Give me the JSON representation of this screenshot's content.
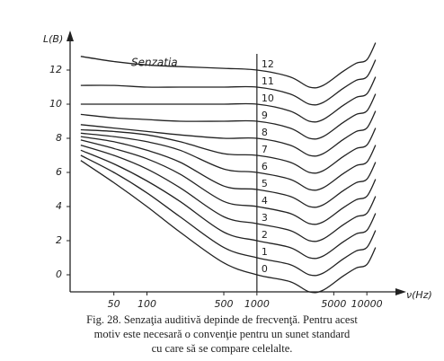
{
  "chart_data": {
    "type": "line",
    "y_label": "L(B)",
    "x_label": "ν(Hz)",
    "annotation": "Senzatia",
    "caption": [
      "Fig. 28. Senzaţia auditivă depinde de frecvenţă. Pentru acest",
      "motiv este necesară o convenţie pentru un sunet standard",
      "cu care să se compare celelalte."
    ],
    "log_x": true,
    "grid": false,
    "color": "#222",
    "xlim": [
      20,
      20000
    ],
    "ylim": [
      -1,
      14
    ],
    "xticks": [
      50,
      100,
      500,
      1000,
      5000,
      10000
    ],
    "yticks": [
      0,
      2,
      4,
      6,
      8,
      10,
      12
    ],
    "marker_x": 1000,
    "x": [
      25,
      50,
      100,
      200,
      500,
      1000,
      2000,
      3000,
      4000,
      6000,
      8000,
      10000,
      12000
    ],
    "series": [
      {
        "name": "0",
        "values": [
          6.7,
          5.4,
          4.0,
          2.5,
          0.7,
          0,
          -0.4,
          -1.0,
          -0.9,
          -0.1,
          0.4,
          0.6,
          1.6
        ]
      },
      {
        "name": "1",
        "values": [
          7.0,
          6.0,
          4.8,
          3.4,
          1.6,
          1,
          0.6,
          0.0,
          0.1,
          0.9,
          1.4,
          1.6,
          2.6
        ]
      },
      {
        "name": "2",
        "values": [
          7.3,
          6.5,
          5.5,
          4.3,
          2.5,
          2,
          1.6,
          1.0,
          1.1,
          1.9,
          2.4,
          2.6,
          3.6
        ]
      },
      {
        "name": "3",
        "values": [
          7.6,
          7.0,
          6.2,
          5.1,
          3.4,
          3,
          2.6,
          2.0,
          2.1,
          2.9,
          3.4,
          3.6,
          4.6
        ]
      },
      {
        "name": "4",
        "values": [
          7.9,
          7.4,
          6.8,
          5.9,
          4.3,
          4,
          3.6,
          3.0,
          3.1,
          3.9,
          4.4,
          4.6,
          5.6
        ]
      },
      {
        "name": "5",
        "values": [
          8.1,
          7.8,
          7.3,
          6.6,
          5.2,
          5,
          4.6,
          4.0,
          4.1,
          4.9,
          5.4,
          5.6,
          6.6
        ]
      },
      {
        "name": "6",
        "values": [
          8.3,
          8.1,
          7.8,
          7.3,
          6.2,
          6,
          5.6,
          5.0,
          5.1,
          5.9,
          6.4,
          6.6,
          7.6
        ]
      },
      {
        "name": "7",
        "values": [
          8.5,
          8.4,
          8.2,
          7.8,
          7.1,
          7,
          6.6,
          6.0,
          6.1,
          6.9,
          7.4,
          7.6,
          8.6
        ]
      },
      {
        "name": "8",
        "values": [
          8.8,
          8.6,
          8.4,
          8.2,
          8.0,
          8,
          7.6,
          7.0,
          7.1,
          7.9,
          8.4,
          8.6,
          9.6
        ]
      },
      {
        "name": "9",
        "values": [
          9.4,
          9.2,
          9.1,
          9.0,
          9.0,
          9,
          8.6,
          8.0,
          8.1,
          8.9,
          9.4,
          9.6,
          10.6
        ]
      },
      {
        "name": "10",
        "values": [
          10.0,
          10.0,
          10.0,
          10.0,
          10.0,
          10,
          9.6,
          9.0,
          9.1,
          9.9,
          10.4,
          10.6,
          11.6
        ]
      },
      {
        "name": "11",
        "values": [
          11.1,
          11.1,
          11.0,
          11.0,
          11.0,
          11,
          10.6,
          10.0,
          10.1,
          10.9,
          11.4,
          11.6,
          12.6
        ]
      },
      {
        "name": "12",
        "values": [
          12.8,
          12.5,
          12.3,
          12.2,
          12.1,
          12,
          11.6,
          11.0,
          11.1,
          11.9,
          12.4,
          12.6,
          13.6
        ]
      }
    ]
  }
}
